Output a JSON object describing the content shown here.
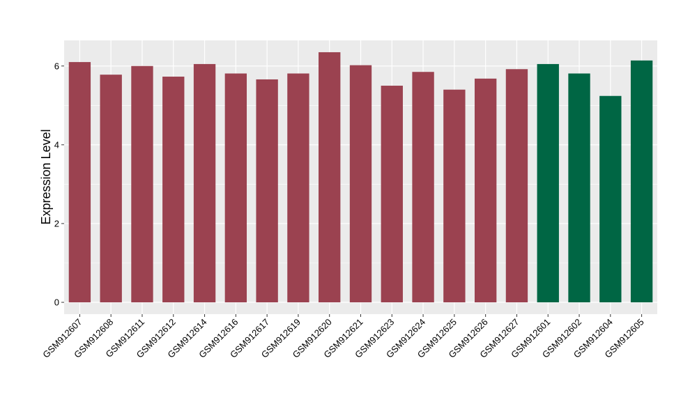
{
  "chart_data": {
    "type": "bar",
    "title": "",
    "xlabel": "",
    "ylabel": "Expression Level",
    "ylim": [
      -0.3,
      6.65
    ],
    "yticks": [
      0,
      2,
      4,
      6
    ],
    "grid": true,
    "legend": "none",
    "categories": [
      "GSM912607",
      "GSM912608",
      "GSM912611",
      "GSM912612",
      "GSM912614",
      "GSM912616",
      "GSM912617",
      "GSM912619",
      "GSM912620",
      "GSM912621",
      "GSM912623",
      "GSM912624",
      "GSM912625",
      "GSM912626",
      "GSM912627",
      "GSM912601",
      "GSM912602",
      "GSM912604",
      "GSM912605"
    ],
    "values": [
      6.1,
      5.78,
      6.0,
      5.73,
      6.05,
      5.81,
      5.66,
      5.81,
      6.35,
      6.02,
      5.5,
      5.85,
      5.4,
      5.68,
      5.92,
      6.05,
      5.81,
      5.24,
      6.14
    ],
    "group_colors": [
      "#9b4250",
      "#9b4250",
      "#9b4250",
      "#9b4250",
      "#9b4250",
      "#9b4250",
      "#9b4250",
      "#9b4250",
      "#9b4250",
      "#9b4250",
      "#9b4250",
      "#9b4250",
      "#9b4250",
      "#9b4250",
      "#9b4250",
      "#006644",
      "#006644",
      "#006644",
      "#006644"
    ]
  },
  "colors": {
    "panel_background": "#ebebeb",
    "grid_major": "#ffffff",
    "axis_tick": "#333333"
  }
}
